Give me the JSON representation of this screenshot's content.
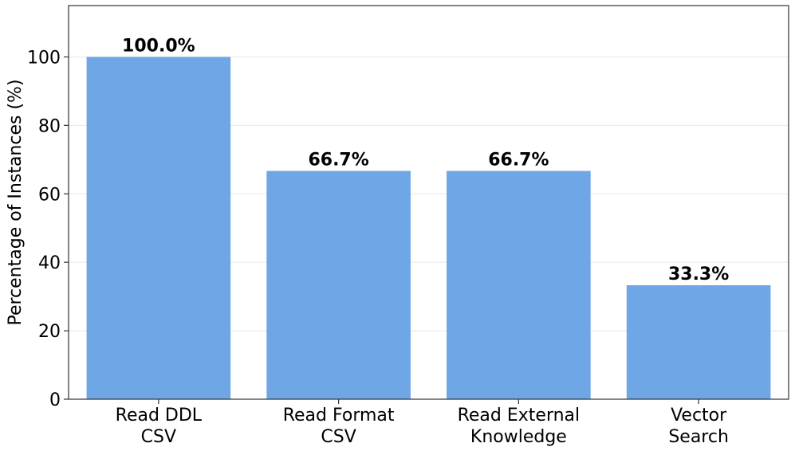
{
  "chart_data": {
    "type": "bar",
    "categories": [
      [
        "Read DDL",
        "CSV"
      ],
      [
        "Read Format",
        "CSV"
      ],
      [
        "Read External",
        "Knowledge"
      ],
      [
        "Vector",
        "Search"
      ]
    ],
    "values": [
      100.0,
      66.7,
      66.7,
      33.3
    ],
    "data_labels": [
      "100.0%",
      "66.7%",
      "66.7%",
      "33.3%"
    ],
    "title": "",
    "xlabel": "",
    "ylabel": "Percentage of Instances (%)",
    "ylim": [
      0,
      115
    ],
    "yticks": [
      0,
      20,
      40,
      60,
      80,
      100
    ],
    "ytick_labels": [
      "0",
      "20",
      "40",
      "60",
      "80",
      "100"
    ],
    "grid": "horizontal",
    "legend": "none",
    "colors": {
      "bar": "#6fa6e6",
      "grid": "#e8e8e8",
      "axes": "#333333"
    }
  }
}
